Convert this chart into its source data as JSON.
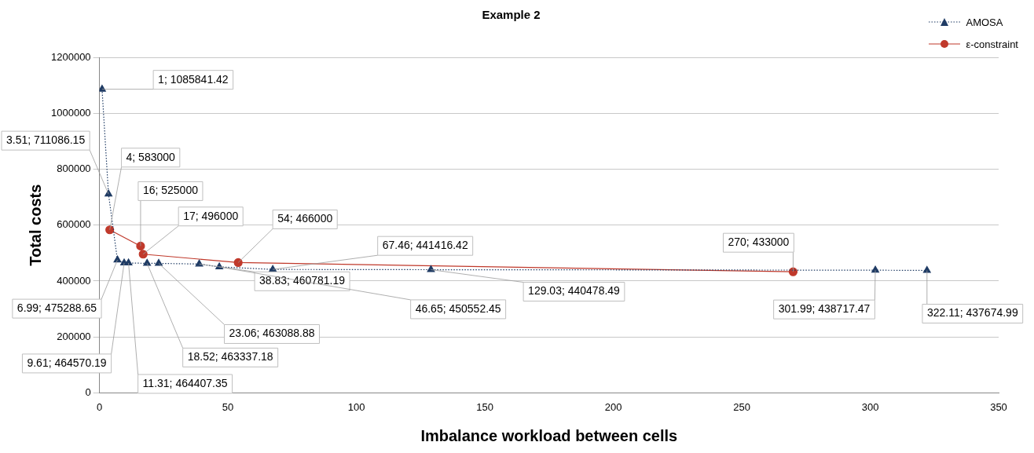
{
  "chart_data": {
    "type": "line",
    "title": "Example 2",
    "xlabel": "Imbalance workload between cells",
    "ylabel": "Total costs",
    "xlim": [
      0,
      350
    ],
    "xticks": [
      0,
      50,
      100,
      150,
      200,
      250,
      300,
      350
    ],
    "ylim": [
      0,
      1200000
    ],
    "yticks": [
      0,
      200000,
      400000,
      600000,
      800000,
      1000000,
      1200000
    ],
    "grid": "y",
    "legend": "top right",
    "series": [
      {
        "name": "AMOSA",
        "color": "#1f3b64",
        "line_style": "dotted",
        "marker": "triangle",
        "x": [
          1,
          3.51,
          6.99,
          9.61,
          11.31,
          18.52,
          23.06,
          38.83,
          46.65,
          67.46,
          129.03,
          301.99,
          322.11
        ],
        "values": [
          1085841.42,
          711086.15,
          475288.65,
          464570.19,
          464407.35,
          463337.18,
          463088.88,
          460781.19,
          450552.45,
          441416.42,
          440478.49,
          438717.47,
          437674.99
        ],
        "value_labels": [
          "1; 1085841.42",
          "3.51; 711086.15",
          "6.99; 475288.65",
          "9.61; 464570.19",
          "11.31; 464407.35",
          "18.52; 463337.18",
          "23.06; 463088.88",
          "38.83; 460781.19",
          "46.65; 450552.45",
          "67.46; 441416.42",
          "129.03; 440478.49",
          "301.99; 438717.47",
          "322.11; 437674.99"
        ]
      },
      {
        "name": "ε-constraint",
        "color": "#c0392b",
        "line_style": "solid",
        "marker": "circle",
        "x": [
          4,
          16,
          17,
          54,
          270
        ],
        "values": [
          583000,
          525000,
          496000,
          466000,
          433000
        ],
        "value_labels": [
          "4; 583000",
          "16; 525000",
          "17; 496000",
          "54; 466000",
          "270; 433000"
        ]
      }
    ]
  }
}
